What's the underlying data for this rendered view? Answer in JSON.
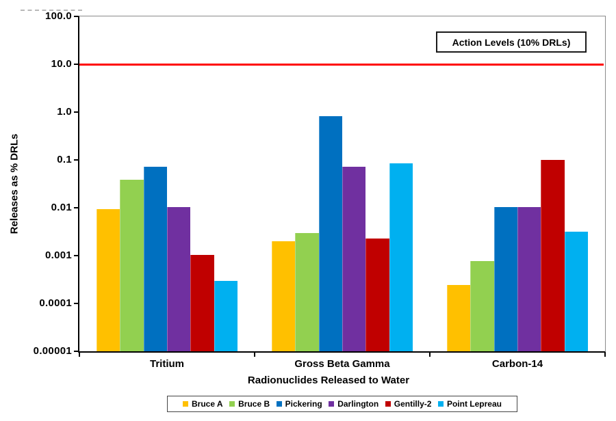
{
  "chart_data": {
    "type": "bar",
    "y_scale": "log",
    "ylim": [
      1e-05,
      100
    ],
    "ylabel": "Releases as % DRLs",
    "xlabel": "Radionuclides Released to Water",
    "grid": false,
    "legend_position": "bottom",
    "yticks": [
      {
        "label": "100.0",
        "value": 100
      },
      {
        "label": "10.0",
        "value": 10
      },
      {
        "label": "1.0",
        "value": 1
      },
      {
        "label": "0.1",
        "value": 0.1
      },
      {
        "label": "0.01",
        "value": 0.01
      },
      {
        "label": "0.001",
        "value": 0.001
      },
      {
        "label": "0.0001",
        "value": 0.0001
      },
      {
        "label": "0.00001",
        "value": 1e-05
      }
    ],
    "categories": [
      "Tritium",
      "Gross Beta Gamma",
      "Carbon-14"
    ],
    "series": [
      {
        "name": "Bruce A",
        "color": "#FFC000",
        "values": [
          0.0095,
          0.002,
          0.00024
        ]
      },
      {
        "name": "Bruce B",
        "color": "#92D050",
        "values": [
          0.038,
          0.003,
          0.00078
        ]
      },
      {
        "name": "Pickering",
        "color": "#0070C0",
        "values": [
          0.072,
          0.82,
          0.0105
        ]
      },
      {
        "name": "Darlington",
        "color": "#7030A0",
        "values": [
          0.0105,
          0.072,
          0.0105
        ]
      },
      {
        "name": "Gentilly-2",
        "color": "#C00000",
        "values": [
          0.00105,
          0.0023,
          0.1
        ]
      },
      {
        "name": "Point Lepreau",
        "color": "#00B0F0",
        "values": [
          0.0003,
          0.085,
          0.0032
        ]
      }
    ],
    "annotation": {
      "label": "Action Levels (10% DRLs)",
      "line_value": 10,
      "line_color": "#FF0000"
    }
  }
}
